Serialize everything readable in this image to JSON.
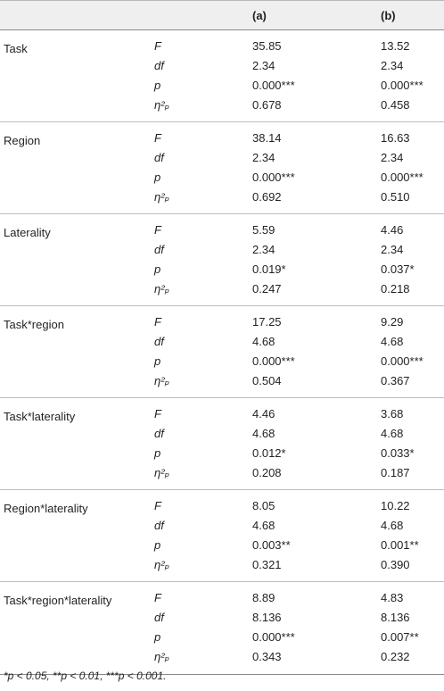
{
  "columns": {
    "a": "(a)",
    "b": "(b)"
  },
  "stat_labels": {
    "F": "F",
    "df": "df",
    "p": "p",
    "eta": "η²ₚ"
  },
  "rows": [
    {
      "effect": "Task",
      "F": [
        "35.85",
        "13.52"
      ],
      "df": [
        "2.34",
        "2.34"
      ],
      "p": [
        "0.000***",
        "0.000***"
      ],
      "eta": [
        "0.678",
        "0.458"
      ]
    },
    {
      "effect": "Region",
      "F": [
        "38.14",
        "16.63"
      ],
      "df": [
        "2.34",
        "2.34"
      ],
      "p": [
        "0.000***",
        "0.000***"
      ],
      "eta": [
        "0.692",
        "0.510"
      ]
    },
    {
      "effect": "Laterality",
      "F": [
        "5.59",
        "4.46"
      ],
      "df": [
        "2.34",
        "2.34"
      ],
      "p": [
        "0.019*",
        "0.037*"
      ],
      "eta": [
        "0.247",
        "0.218"
      ]
    },
    {
      "effect": "Task*region",
      "F": [
        "17.25",
        "9.29"
      ],
      "df": [
        "4.68",
        "4.68"
      ],
      "p": [
        "0.000***",
        "0.000***"
      ],
      "eta": [
        "0.504",
        "0.367"
      ]
    },
    {
      "effect": "Task*laterality",
      "F": [
        "4.46",
        "3.68"
      ],
      "df": [
        "4.68",
        "4.68"
      ],
      "p": [
        "0.012*",
        "0.033*"
      ],
      "eta": [
        "0.208",
        "0.187"
      ]
    },
    {
      "effect": "Region*laterality",
      "F": [
        "8.05",
        "10.22"
      ],
      "df": [
        "4.68",
        "4.68"
      ],
      "p": [
        "0.003**",
        "0.001**"
      ],
      "eta": [
        "0.321",
        "0.390"
      ]
    },
    {
      "effect": "Task*region*laterality",
      "F": [
        "8.89",
        "4.83"
      ],
      "df": [
        "8.136",
        "8.136"
      ],
      "p": [
        "0.000***",
        "0.007**"
      ],
      "eta": [
        "0.343",
        "0.232"
      ]
    }
  ],
  "footnote": "*p < 0.05, **p < 0.01, ***p < 0.001."
}
